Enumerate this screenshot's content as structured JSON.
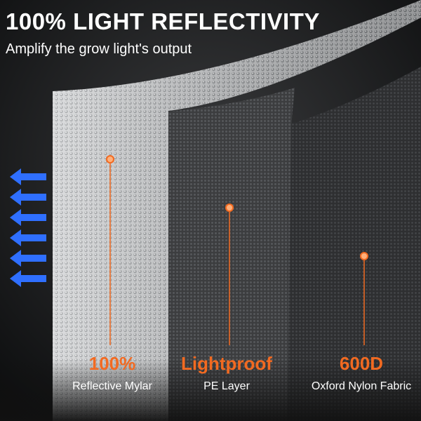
{
  "header": {
    "title": "100% LIGHT REFLECTIVITY",
    "subtitle": "Amplify the grow light's output"
  },
  "layers": [
    {
      "highlight": "100%",
      "label": "Reflective Mylar"
    },
    {
      "highlight": "Lightproof",
      "label": "PE Layer"
    },
    {
      "highlight": "600D",
      "label": "Oxford Nylon Fabric"
    }
  ]
}
